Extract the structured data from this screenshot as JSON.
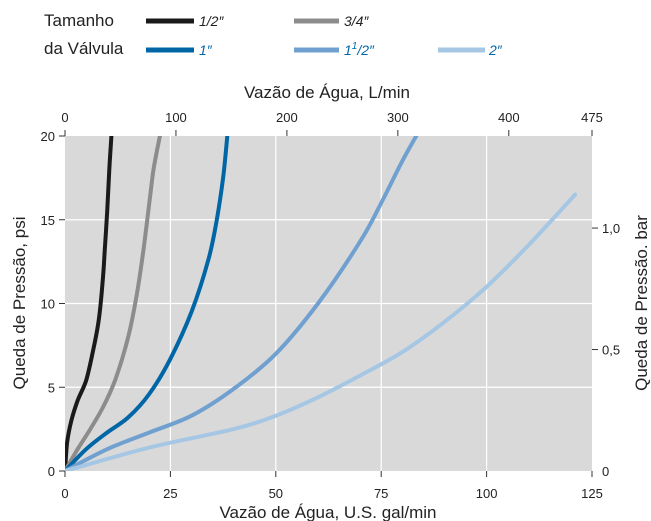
{
  "chart_data": {
    "type": "line",
    "legend": {
      "title_line1": "Tamanho",
      "title_line2": "da Válvula",
      "placement": "top-left",
      "entries": [
        {
          "label": "1/2″",
          "color": "#1a1a1a",
          "label_color": "#222222"
        },
        {
          "label": "3/4″",
          "color": "#8c8c8c",
          "label_color": "#222222"
        },
        {
          "label": "1″",
          "color": "#0066a6",
          "label_color": "#0066a6"
        },
        {
          "label": "1",
          "label_sup": "1",
          "label_sub": "/2″",
          "color": "#6fa0cf",
          "label_color": "#0066a6"
        },
        {
          "label": "2″",
          "color": "#a6c7e4",
          "label_color": "#0066a6"
        }
      ]
    },
    "xlabel": "Vazão de Água, U.S. gal/min",
    "ylabel": "Queda de Pressão, psi",
    "x2label": "Vazão de Água, L/min",
    "y2label": "Queda de Pressão. bar",
    "xlim": [
      0,
      125
    ],
    "ylim": [
      0,
      20
    ],
    "xticks": [
      0,
      25,
      50,
      75,
      100,
      125
    ],
    "yticks": [
      0,
      5,
      10,
      15,
      20
    ],
    "x2ticks": [
      {
        "value": 0,
        "label": "0"
      },
      {
        "value": 100,
        "label": "100"
      },
      {
        "value": 200,
        "label": "200"
      },
      {
        "value": 300,
        "label": "300"
      },
      {
        "value": 400,
        "label": "400"
      },
      {
        "value": 475,
        "label": "475"
      }
    ],
    "x2lim_lpm": [
      0,
      475
    ],
    "y2ticks": [
      {
        "value": 0,
        "label": "0"
      },
      {
        "value": 0.5,
        "label": "0,5"
      },
      {
        "value": 1.0,
        "label": "1,0"
      }
    ],
    "psi_per_bar": 14.5038,
    "grid": true,
    "plot_background": "#d9d9d9",
    "series": [
      {
        "legend_index": 0,
        "color": "#1a1a1a",
        "x": [
          0,
          0.5,
          1.5,
          3,
          5,
          6.5,
          8,
          9,
          9.5,
          10,
          10.5,
          11
        ],
        "y": [
          0,
          1.7,
          3,
          4.2,
          5.4,
          7,
          9,
          11.5,
          13.5,
          15.5,
          18,
          20
        ]
      },
      {
        "legend_index": 1,
        "color": "#8c8c8c",
        "x": [
          0,
          3,
          6,
          9,
          12,
          15,
          17,
          18.5,
          20,
          21,
          22.5
        ],
        "y": [
          0,
          1.3,
          2.5,
          3.8,
          5.5,
          8,
          10.5,
          13,
          16,
          18,
          20
        ]
      },
      {
        "legend_index": 2,
        "color": "#0066a6",
        "x": [
          0,
          5,
          10,
          15,
          20,
          25,
          30,
          34,
          36,
          37.5,
          38.5
        ],
        "y": [
          0,
          1.3,
          2.3,
          3.2,
          4.6,
          6.7,
          9.5,
          12.6,
          15,
          17.5,
          20
        ]
      },
      {
        "legend_index": 3,
        "color": "#6fa0cf",
        "x": [
          0,
          10,
          20,
          30,
          40,
          50,
          60,
          70,
          75,
          80,
          84
        ],
        "y": [
          0,
          1.3,
          2.3,
          3.3,
          4.9,
          7,
          10,
          13.7,
          16,
          18.5,
          20.3
        ]
      },
      {
        "legend_index": 4,
        "color": "#a6c7e4",
        "x": [
          0,
          20,
          40,
          50,
          60,
          70,
          80,
          90,
          100,
          110,
          121
        ],
        "y": [
          0,
          1.4,
          2.5,
          3.3,
          4.4,
          5.7,
          7.1,
          8.9,
          11,
          13.5,
          16.5
        ]
      }
    ]
  }
}
